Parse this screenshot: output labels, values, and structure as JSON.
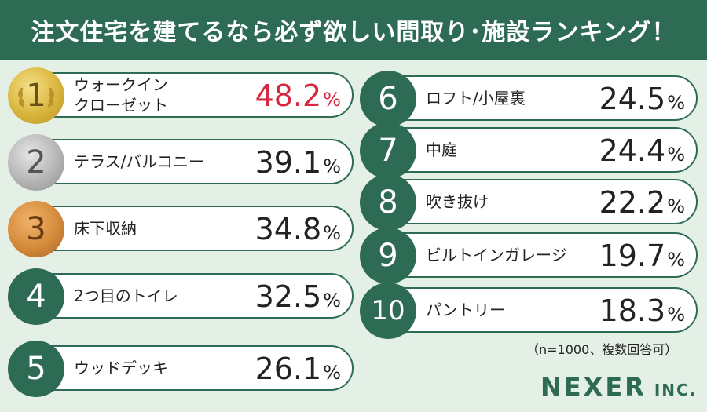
{
  "title": "注文住宅を建てるなら必ず欲しい間取り･施設ランキング！",
  "percent_sign": "%",
  "rankings": [
    {
      "rank": "1",
      "label": "ウォークイン\nクローゼット",
      "value": "48.2"
    },
    {
      "rank": "2",
      "label": "テラス/バルコニー",
      "value": "39.1"
    },
    {
      "rank": "3",
      "label": "床下収納",
      "value": "34.8"
    },
    {
      "rank": "4",
      "label": "2つ目のトイレ",
      "value": "32.5"
    },
    {
      "rank": "5",
      "label": "ウッドデッキ",
      "value": "26.1"
    },
    {
      "rank": "6",
      "label": "ロフト/小屋裏",
      "value": "24.5"
    },
    {
      "rank": "7",
      "label": "中庭",
      "value": "24.4"
    },
    {
      "rank": "8",
      "label": "吹き抜け",
      "value": "22.2"
    },
    {
      "rank": "9",
      "label": "ビルトインガレージ",
      "value": "19.7"
    },
    {
      "rank": "10",
      "label": "パントリー",
      "value": "18.3"
    }
  ],
  "note": "（n=1000、複数回答可）",
  "logo": {
    "name": "NEXER",
    "suffix": "INC."
  },
  "colors": {
    "accent": "#2e6b55",
    "highlight": "#d6293f",
    "background": "#e4efe6"
  }
}
